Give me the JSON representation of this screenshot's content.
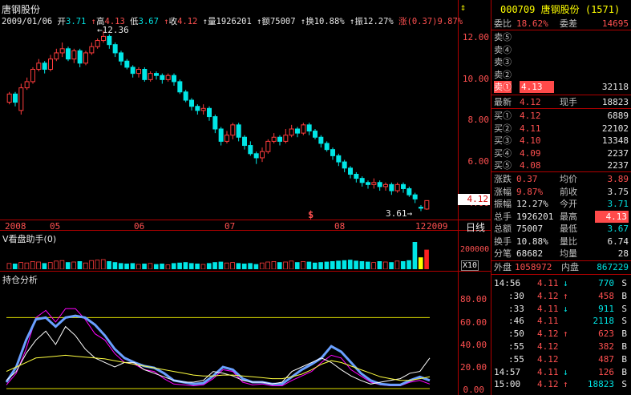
{
  "stock_name": "唐钢股份",
  "infobar": {
    "date": "2009/01/06",
    "open_label": "开",
    "open": "3.71",
    "high_label": "高",
    "high": "4.13",
    "low_label": "低",
    "low": "3.67",
    "close_label": "收",
    "close": "4.12",
    "vol_label": "量",
    "vol": "1926201",
    "amt_label": "额",
    "amt": "75007",
    "turn_label": "换",
    "turn": "10.88%",
    "amp_label": "振",
    "amp": "12.27%",
    "chg_label": "涨",
    "chg": "(0.37)",
    "chg_pct": "9.87%"
  },
  "price_axis": [
    "12.00",
    "10.00",
    "8.00",
    "6.00",
    "4.00"
  ],
  "annotations": {
    "max": "12.36",
    "min": "3.61",
    "last": "4.12",
    "marker": "$"
  },
  "date_axis": [
    "2008",
    "05",
    "06",
    "07",
    "08",
    "12",
    "2009"
  ],
  "period_label": "日线",
  "vol_panel": {
    "title": "V看盘助手(0)",
    "tick": "200000",
    "unit": "X10"
  },
  "ind_panel": {
    "title": "持仓分析",
    "ticks": [
      "80.00",
      "60.00",
      "40.00",
      "20.00",
      "0.00"
    ]
  },
  "quote": {
    "code": "000709",
    "name": "唐钢股份",
    "seq": "(1571)",
    "weibi_label": "委比",
    "weibi": "18.62%",
    "weicha_label": "委差",
    "weicha": "14695",
    "sells": [
      {
        "label": "卖⑤",
        "price": "",
        "vol": ""
      },
      {
        "label": "卖④",
        "price": "",
        "vol": ""
      },
      {
        "label": "卖③",
        "price": "",
        "vol": ""
      },
      {
        "label": "卖②",
        "price": "",
        "vol": ""
      },
      {
        "label": "卖①",
        "price": "4.13",
        "vol": "32118"
      }
    ],
    "last_label": "最新",
    "last": "4.12",
    "cur_label": "现手",
    "cur": "18823",
    "buys": [
      {
        "label": "买①",
        "price": "4.12",
        "vol": "6889"
      },
      {
        "label": "买②",
        "price": "4.11",
        "vol": "22102"
      },
      {
        "label": "买③",
        "price": "4.10",
        "vol": "13348"
      },
      {
        "label": "买④",
        "price": "4.09",
        "vol": "2237"
      },
      {
        "label": "买⑤",
        "price": "4.08",
        "vol": "2237"
      }
    ],
    "stats": [
      {
        "l1": "涨跌",
        "v1": "0.37",
        "l2": "均价",
        "v2": "3.89",
        "c1": "red",
        "c2": "red"
      },
      {
        "l1": "涨幅",
        "v1": "9.87%",
        "l2": "前收",
        "v2": "3.75",
        "c1": "red",
        "c2": "gry"
      },
      {
        "l1": "振幅",
        "v1": "12.27%",
        "l2": "今开",
        "v2": "3.71",
        "c1": "gry",
        "c2": "grn"
      },
      {
        "l1": "总手",
        "v1": "1926201",
        "l2": "最高",
        "v2": "4.13",
        "c1": "gry",
        "c2": "hi"
      },
      {
        "l1": "总额",
        "v1": "75007",
        "l2": "最低",
        "v2": "3.67",
        "c1": "gry",
        "c2": "grn"
      },
      {
        "l1": "换手",
        "v1": "10.88%",
        "l2": "量比",
        "v2": "6.74",
        "c1": "gry",
        "c2": "gry"
      },
      {
        "l1": "分笔",
        "v1": "68682",
        "l2": "均量",
        "v2": "28",
        "c1": "gry",
        "c2": "gry"
      }
    ],
    "outer_label": "外盘",
    "outer": "1058972",
    "inner_label": "内盘",
    "inner": "867229"
  },
  "ticks": [
    {
      "time": "14:56",
      "price": "4.11",
      "arrow": "↓",
      "vol": "770",
      "bs": "S"
    },
    {
      "time": ":30",
      "price": "4.12",
      "arrow": "↑",
      "vol": "458",
      "bs": "B"
    },
    {
      "time": ":33",
      "price": "4.11",
      "arrow": "↓",
      "vol": "911",
      "bs": "S"
    },
    {
      "time": ":46",
      "price": "4.11",
      "arrow": "",
      "vol": "2118",
      "bs": "S"
    },
    {
      "time": ":50",
      "price": "4.12",
      "arrow": "↑",
      "vol": "623",
      "bs": "B"
    },
    {
      "time": ":55",
      "price": "4.12",
      "arrow": "",
      "vol": "382",
      "bs": "B"
    },
    {
      "time": ":55",
      "price": "4.12",
      "arrow": "",
      "vol": "487",
      "bs": "B"
    },
    {
      "time": "14:57",
      "price": "4.11",
      "arrow": "↓",
      "vol": "126",
      "bs": "B"
    },
    {
      "time": "15:00",
      "price": "4.12",
      "arrow": "↑",
      "vol": "18823",
      "bs": "S"
    }
  ],
  "chart_data": {
    "type": "candlestick",
    "ylim": [
      3.2,
      12.7
    ],
    "candles": [
      {
        "o": 8.9,
        "c": 9.3,
        "h": 9.4,
        "l": 8.8
      },
      {
        "o": 9.3,
        "c": 8.9,
        "h": 9.4,
        "l": 8.7
      },
      {
        "o": 8.5,
        "c": 9.6,
        "h": 9.8,
        "l": 8.3
      },
      {
        "o": 9.6,
        "c": 9.9,
        "h": 10.1,
        "l": 9.5
      },
      {
        "o": 9.9,
        "c": 10.5,
        "h": 10.6,
        "l": 9.8
      },
      {
        "o": 10.5,
        "c": 10.8,
        "h": 11.0,
        "l": 10.4
      },
      {
        "o": 10.8,
        "c": 10.5,
        "h": 10.9,
        "l": 10.3
      },
      {
        "o": 10.5,
        "c": 11.0,
        "h": 11.2,
        "l": 10.4
      },
      {
        "o": 11.0,
        "c": 11.3,
        "h": 11.5,
        "l": 10.9
      },
      {
        "o": 11.3,
        "c": 11.5,
        "h": 11.8,
        "l": 11.1
      },
      {
        "o": 11.5,
        "c": 11.0,
        "h": 11.6,
        "l": 10.9
      },
      {
        "o": 11.0,
        "c": 11.4,
        "h": 11.5,
        "l": 10.8
      },
      {
        "o": 11.4,
        "c": 10.8,
        "h": 11.5,
        "l": 10.6
      },
      {
        "o": 10.8,
        "c": 11.3,
        "h": 11.4,
        "l": 10.7
      },
      {
        "o": 11.3,
        "c": 11.6,
        "h": 11.8,
        "l": 11.2
      },
      {
        "o": 11.6,
        "c": 11.9,
        "h": 12.0,
        "l": 11.5
      },
      {
        "o": 11.9,
        "c": 12.1,
        "h": 12.36,
        "l": 11.8
      },
      {
        "o": 12.1,
        "c": 11.7,
        "h": 12.2,
        "l": 11.5
      },
      {
        "o": 11.7,
        "c": 11.3,
        "h": 11.8,
        "l": 11.1
      },
      {
        "o": 11.3,
        "c": 10.9,
        "h": 11.4,
        "l": 10.7
      },
      {
        "o": 10.9,
        "c": 10.6,
        "h": 11.0,
        "l": 10.5
      },
      {
        "o": 10.6,
        "c": 10.3,
        "h": 10.7,
        "l": 10.1
      },
      {
        "o": 10.3,
        "c": 10.5,
        "h": 10.6,
        "l": 10.1
      },
      {
        "o": 10.5,
        "c": 10.0,
        "h": 10.6,
        "l": 9.9
      },
      {
        "o": 10.0,
        "c": 10.3,
        "h": 10.4,
        "l": 9.9
      },
      {
        "o": 10.3,
        "c": 10.2,
        "h": 10.4,
        "l": 10.0
      },
      {
        "o": 10.2,
        "c": 10.0,
        "h": 10.3,
        "l": 9.8
      },
      {
        "o": 10.0,
        "c": 10.2,
        "h": 10.3,
        "l": 9.9
      },
      {
        "o": 10.2,
        "c": 9.9,
        "h": 10.3,
        "l": 9.7
      },
      {
        "o": 9.9,
        "c": 9.4,
        "h": 10.0,
        "l": 9.3
      },
      {
        "o": 9.4,
        "c": 9.0,
        "h": 9.5,
        "l": 8.9
      },
      {
        "o": 9.0,
        "c": 8.7,
        "h": 9.1,
        "l": 8.5
      },
      {
        "o": 8.7,
        "c": 8.5,
        "h": 8.8,
        "l": 8.3
      },
      {
        "o": 8.5,
        "c": 8.6,
        "h": 8.8,
        "l": 8.3
      },
      {
        "o": 8.6,
        "c": 8.2,
        "h": 8.7,
        "l": 8.0
      },
      {
        "o": 8.2,
        "c": 7.6,
        "h": 8.3,
        "l": 7.4
      },
      {
        "o": 7.6,
        "c": 7.0,
        "h": 7.7,
        "l": 6.8
      },
      {
        "o": 7.0,
        "c": 7.3,
        "h": 7.5,
        "l": 6.9
      },
      {
        "o": 7.3,
        "c": 7.8,
        "h": 7.9,
        "l": 7.1
      },
      {
        "o": 7.8,
        "c": 7.2,
        "h": 7.9,
        "l": 7.0
      },
      {
        "o": 7.2,
        "c": 6.8,
        "h": 7.3,
        "l": 6.6
      },
      {
        "o": 6.8,
        "c": 6.4,
        "h": 7.0,
        "l": 6.3
      },
      {
        "o": 6.4,
        "c": 6.2,
        "h": 6.5,
        "l": 5.9
      },
      {
        "o": 6.2,
        "c": 6.5,
        "h": 6.7,
        "l": 6.0
      },
      {
        "o": 6.5,
        "c": 7.0,
        "h": 7.1,
        "l": 6.4
      },
      {
        "o": 7.0,
        "c": 7.2,
        "h": 7.4,
        "l": 6.9
      },
      {
        "o": 7.2,
        "c": 7.0,
        "h": 7.3,
        "l": 6.8
      },
      {
        "o": 7.0,
        "c": 7.3,
        "h": 7.6,
        "l": 6.9
      },
      {
        "o": 7.3,
        "c": 7.6,
        "h": 7.8,
        "l": 7.2
      },
      {
        "o": 7.6,
        "c": 7.4,
        "h": 7.7,
        "l": 7.2
      },
      {
        "o": 7.4,
        "c": 7.8,
        "h": 7.9,
        "l": 7.3
      },
      {
        "o": 7.8,
        "c": 7.5,
        "h": 7.9,
        "l": 7.3
      },
      {
        "o": 7.5,
        "c": 7.2,
        "h": 7.6,
        "l": 7.1
      },
      {
        "o": 7.2,
        "c": 6.9,
        "h": 7.3,
        "l": 6.7
      },
      {
        "o": 6.9,
        "c": 6.6,
        "h": 7.0,
        "l": 6.5
      },
      {
        "o": 6.6,
        "c": 6.3,
        "h": 6.7,
        "l": 6.1
      },
      {
        "o": 6.3,
        "c": 6.0,
        "h": 6.4,
        "l": 5.8
      },
      {
        "o": 6.0,
        "c": 5.7,
        "h": 6.1,
        "l": 5.5
      },
      {
        "o": 5.7,
        "c": 5.4,
        "h": 5.8,
        "l": 5.2
      },
      {
        "o": 5.4,
        "c": 5.2,
        "h": 5.5,
        "l": 5.0
      },
      {
        "o": 5.2,
        "c": 5.0,
        "h": 5.3,
        "l": 4.8
      },
      {
        "o": 5.0,
        "c": 4.9,
        "h": 5.1,
        "l": 4.7
      },
      {
        "o": 4.9,
        "c": 5.0,
        "h": 5.2,
        "l": 4.7
      },
      {
        "o": 5.0,
        "c": 4.8,
        "h": 5.1,
        "l": 4.6
      },
      {
        "o": 4.8,
        "c": 4.9,
        "h": 5.0,
        "l": 4.6
      },
      {
        "o": 4.9,
        "c": 4.6,
        "h": 5.0,
        "l": 4.4
      },
      {
        "o": 4.6,
        "c": 4.9,
        "h": 5.0,
        "l": 4.5
      },
      {
        "o": 4.9,
        "c": 4.7,
        "h": 5.0,
        "l": 4.5
      },
      {
        "o": 4.7,
        "c": 4.4,
        "h": 4.8,
        "l": 4.3
      },
      {
        "o": 4.4,
        "c": 4.2,
        "h": 4.5,
        "l": 4.0
      },
      {
        "o": 3.8,
        "c": 3.75,
        "h": 3.9,
        "l": 3.61
      },
      {
        "o": 3.71,
        "c": 4.12,
        "h": 4.13,
        "l": 3.67
      }
    ],
    "volumes": [
      60,
      55,
      70,
      65,
      80,
      75,
      60,
      70,
      85,
      90,
      70,
      75,
      80,
      65,
      90,
      95,
      100,
      80,
      70,
      60,
      55,
      60,
      50,
      55,
      60,
      50,
      55,
      45,
      60,
      65,
      70,
      60,
      55,
      50,
      60,
      70,
      75,
      65,
      70,
      60,
      55,
      60,
      50,
      65,
      75,
      80,
      70,
      75,
      85,
      70,
      80,
      75,
      65,
      70,
      75,
      80,
      85,
      90,
      95,
      85,
      80,
      75,
      70,
      80,
      75,
      70,
      85,
      80,
      90,
      280,
      120,
      200
    ],
    "vol_colors": [
      "up",
      "dn",
      "up",
      "up",
      "up",
      "up",
      "dn",
      "up",
      "up",
      "up",
      "dn",
      "up",
      "dn",
      "up",
      "up",
      "up",
      "up",
      "dn",
      "dn",
      "dn",
      "dn",
      "dn",
      "up",
      "dn",
      "up",
      "dn",
      "dn",
      "up",
      "dn",
      "dn",
      "dn",
      "dn",
      "dn",
      "up",
      "dn",
      "dn",
      "dn",
      "up",
      "up",
      "dn",
      "dn",
      "dn",
      "dn",
      "up",
      "up",
      "up",
      "dn",
      "up",
      "up",
      "dn",
      "up",
      "dn",
      "dn",
      "dn",
      "dn",
      "dn",
      "dn",
      "dn",
      "dn",
      "dn",
      "dn",
      "dn",
      "up",
      "dn",
      "up",
      "dn",
      "up",
      "dn",
      "dn",
      "dn",
      "yellow",
      "red"
    ],
    "indicator_ylim": [
      0,
      100
    ],
    "indicator_series": [
      {
        "color": "#ff00ff",
        "values": [
          5,
          18,
          45,
          80,
          88,
          75,
          90,
          90,
          78,
          62,
          55,
          40,
          30,
          28,
          22,
          20,
          12,
          6,
          5,
          4,
          5,
          12,
          22,
          20,
          8,
          5,
          6,
          4,
          4,
          10,
          15,
          20,
          30,
          38,
          35,
          22,
          15,
          8,
          5,
          4,
          4,
          8,
          10,
          6
        ]
      },
      {
        "color": "#6aa0ff",
        "values": [
          8,
          25,
          55,
          78,
          80,
          70,
          80,
          82,
          80,
          72,
          60,
          45,
          35,
          30,
          26,
          24,
          18,
          10,
          8,
          6,
          7,
          15,
          25,
          22,
          12,
          8,
          8,
          6,
          6,
          14,
          22,
          28,
          35,
          48,
          42,
          30,
          18,
          10,
          6,
          5,
          5,
          10,
          14,
          10
        ]
      },
      {
        "color": "#ffffff",
        "values": [
          10,
          20,
          40,
          55,
          65,
          50,
          70,
          60,
          45,
          35,
          30,
          25,
          30,
          30,
          22,
          18,
          14,
          10,
          8,
          8,
          10,
          20,
          18,
          15,
          10,
          8,
          8,
          6,
          8,
          20,
          25,
          30,
          35,
          30,
          22,
          15,
          10,
          6,
          8,
          10,
          12,
          18,
          20,
          35
        ]
      },
      {
        "color": "#ffff40",
        "values": [
          20,
          25,
          30,
          35,
          36,
          37,
          38,
          37,
          36,
          35,
          34,
          32,
          30,
          28,
          26,
          24,
          22,
          20,
          18,
          16,
          15,
          15,
          16,
          16,
          15,
          14,
          13,
          12,
          12,
          14,
          17,
          22,
          28,
          32,
          30,
          26,
          22,
          18,
          14,
          12,
          10,
          10,
          12,
          14
        ]
      }
    ]
  }
}
